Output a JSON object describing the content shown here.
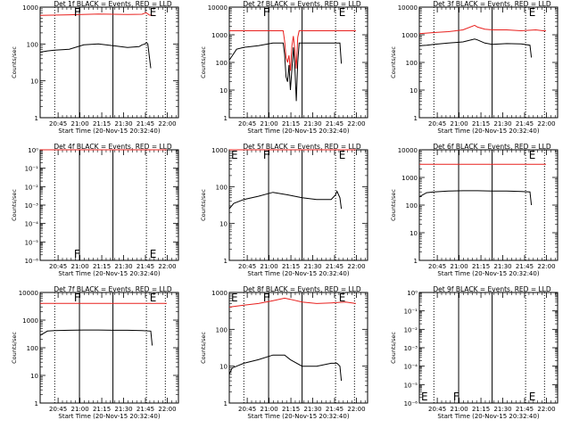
{
  "figure": {
    "x_title": "Start Time (20-Nov-15 20:32:40)",
    "y_title": "Counts/sec"
  },
  "colors": {
    "events": "#000000",
    "lld": "#e8201e"
  },
  "x_ticks": [
    "20:45",
    "21:00",
    "21:15",
    "21:30",
    "21:45",
    "22:00"
  ],
  "chart_data": [
    {
      "type": "line",
      "title": "Det 1f BLACK = Events, RED = LLD",
      "y_scale": "log",
      "ylim": [
        1,
        1000
      ],
      "y_ticks": [
        "1",
        "10",
        "100",
        "1000"
      ],
      "xlim_min": [
        0,
        95
      ],
      "vlines": {
        "solid": [
          27,
          50
        ],
        "dotted": [
          10,
          73,
          86
        ]
      },
      "markers": [
        {
          "text": "F",
          "x": 22,
          "pos": "top"
        },
        {
          "text": "E",
          "x": 74,
          "pos": "top"
        }
      ],
      "series": [
        {
          "name": "LLD",
          "x": [
            0,
            20,
            40,
            60,
            70,
            72,
            73,
            75,
            77,
            78
          ],
          "y": [
            600,
            620,
            650,
            630,
            640,
            690,
            700,
            610,
            600,
            600
          ]
        },
        {
          "name": "Events",
          "x": [
            0,
            5,
            10,
            20,
            30,
            40,
            50,
            60,
            68,
            70,
            72,
            73,
            74,
            75,
            76
          ],
          "y": [
            60,
            65,
            68,
            72,
            95,
            100,
            90,
            80,
            85,
            95,
            100,
            110,
            100,
            45,
            22
          ]
        }
      ]
    },
    {
      "type": "line",
      "title": "Det 2f BLACK = Events, RED = LLD",
      "y_scale": "log",
      "ylim": [
        1,
        10000
      ],
      "y_ticks": [
        "1",
        "10",
        "100",
        "1000",
        "10000"
      ],
      "xlim_min": [
        0,
        95
      ],
      "vlines": {
        "solid": [
          27,
          50
        ],
        "dotted": [
          10,
          73,
          86
        ]
      },
      "markers": [
        {
          "text": "F",
          "x": 22,
          "pos": "top"
        },
        {
          "text": "E",
          "x": 74,
          "pos": "top"
        }
      ],
      "series": [
        {
          "name": "LLD",
          "x": [
            0,
            30,
            37,
            38,
            39,
            40,
            41,
            42,
            43,
            44,
            45,
            46,
            47,
            48,
            60,
            80,
            87
          ],
          "y": [
            1400,
            1400,
            1400,
            600,
            150,
            100,
            180,
            50,
            400,
            900,
            300,
            60,
            800,
            1400,
            1400,
            1400,
            1400
          ]
        },
        {
          "name": "Events",
          "x": [
            0,
            5,
            10,
            20,
            30,
            37,
            38,
            39,
            40,
            41,
            42,
            43,
            44,
            45,
            46,
            47,
            48,
            50,
            60,
            70,
            76,
            77
          ],
          "y": [
            120,
            300,
            350,
            400,
            500,
            500,
            200,
            30,
            20,
            80,
            10,
            60,
            350,
            80,
            4,
            100,
            500,
            500,
            500,
            500,
            500,
            90
          ]
        }
      ]
    },
    {
      "type": "line",
      "title": "Det 3f BLACK = Events, RED = LLD",
      "y_scale": "log",
      "ylim": [
        1,
        10000
      ],
      "y_ticks": [
        "1",
        "10",
        "100",
        "1000",
        "10000"
      ],
      "xlim_min": [
        0,
        95
      ],
      "vlines": {
        "solid": [
          27,
          50
        ],
        "dotted": [
          10,
          73,
          86
        ]
      },
      "markers": [
        {
          "text": "E",
          "x": 74,
          "pos": "top"
        }
      ],
      "series": [
        {
          "name": "LLD",
          "x": [
            0,
            10,
            20,
            30,
            38,
            40,
            45,
            50,
            60,
            70,
            80,
            85,
            87
          ],
          "y": [
            1100,
            1200,
            1300,
            1500,
            2200,
            1900,
            1600,
            1500,
            1500,
            1400,
            1500,
            1400,
            1400
          ]
        },
        {
          "name": "Events",
          "x": [
            0,
            5,
            10,
            20,
            30,
            38,
            40,
            45,
            50,
            60,
            70,
            76,
            77
          ],
          "y": [
            400,
            420,
            450,
            500,
            550,
            700,
            650,
            500,
            450,
            480,
            470,
            420,
            150
          ]
        }
      ]
    },
    {
      "type": "line",
      "title": "Det 4f BLACK = Events, RED = LLD",
      "y_scale": "log",
      "ylim": [
        1e-06,
        1
      ],
      "y_ticks": [
        "10⁻⁶",
        "10⁻⁵",
        "10⁻⁴",
        "10⁻³",
        "10⁻²",
        "10⁻¹",
        "10⁰"
      ],
      "xlim_min": [
        0,
        95
      ],
      "vlines": {
        "solid": [
          27,
          50
        ],
        "dotted": [
          10,
          73,
          86
        ]
      },
      "markers": [
        {
          "text": "F",
          "x": 22,
          "pos": "bottom"
        },
        {
          "text": "E",
          "x": 74,
          "pos": "bottom"
        }
      ],
      "series": [
        {
          "name": "LLD",
          "x": [
            0,
            87
          ],
          "y": [
            1,
            1
          ]
        }
      ]
    },
    {
      "type": "line",
      "title": "Det 5f BLACK = Events, RED = LLD",
      "y_scale": "log",
      "ylim": [
        1,
        1000
      ],
      "y_ticks": [
        "1",
        "10",
        "100",
        "1000"
      ],
      "xlim_min": [
        0,
        95
      ],
      "vlines": {
        "solid": [
          27,
          50
        ],
        "dotted": [
          10,
          73,
          86
        ]
      },
      "markers": [
        {
          "text": "E",
          "x": 0,
          "pos": "top"
        },
        {
          "text": "F",
          "x": 22,
          "pos": "top"
        },
        {
          "text": "E",
          "x": 74,
          "pos": "top"
        }
      ],
      "series": [
        {
          "name": "LLD",
          "x": [
            0,
            87
          ],
          "y": [
            1000,
            1000
          ]
        },
        {
          "name": "Events",
          "x": [
            0,
            3,
            10,
            20,
            30,
            40,
            50,
            60,
            70,
            73,
            74,
            76,
            77
          ],
          "y": [
            25,
            35,
            45,
            55,
            70,
            60,
            50,
            45,
            45,
            60,
            75,
            50,
            25
          ]
        }
      ]
    },
    {
      "type": "line",
      "title": "Det 6f BLACK = Events, RED = LLD",
      "y_scale": "log",
      "ylim": [
        1,
        10000
      ],
      "y_ticks": [
        "1",
        "10",
        "100",
        "1000",
        "10000"
      ],
      "xlim_min": [
        0,
        95
      ],
      "vlines": {
        "solid": [
          27,
          50
        ],
        "dotted": [
          10,
          73,
          86
        ]
      },
      "markers": [
        {
          "text": "E",
          "x": 74,
          "pos": "top"
        }
      ],
      "series": [
        {
          "name": "LLD",
          "x": [
            0,
            87
          ],
          "y": [
            3000,
            3000
          ]
        },
        {
          "name": "Events",
          "x": [
            0,
            5,
            10,
            20,
            30,
            40,
            50,
            60,
            70,
            76,
            77
          ],
          "y": [
            200,
            280,
            300,
            320,
            330,
            330,
            320,
            320,
            310,
            300,
            100
          ]
        }
      ]
    },
    {
      "type": "line",
      "title": "Det 7f BLACK = Events, RED = LLD",
      "y_scale": "log",
      "ylim": [
        1,
        10000
      ],
      "y_ticks": [
        "1",
        "10",
        "100",
        "1000",
        "10000"
      ],
      "xlim_min": [
        0,
        95
      ],
      "vlines": {
        "solid": [
          27,
          50
        ],
        "dotted": [
          10,
          73,
          86
        ]
      },
      "markers": [
        {
          "text": "F",
          "x": 22,
          "pos": "top"
        },
        {
          "text": "E",
          "x": 74,
          "pos": "top"
        }
      ],
      "series": [
        {
          "name": "LLD",
          "x": [
            0,
            87
          ],
          "y": [
            4000,
            4000
          ]
        },
        {
          "name": "Events",
          "x": [
            0,
            5,
            10,
            20,
            30,
            40,
            50,
            60,
            70,
            76,
            77
          ],
          "y": [
            280,
            400,
            420,
            430,
            440,
            440,
            430,
            430,
            420,
            400,
            120
          ]
        }
      ]
    },
    {
      "type": "line",
      "title": "Det 8f BLACK = Events, RED = LLD",
      "y_scale": "log",
      "ylim": [
        1,
        1000
      ],
      "y_ticks": [
        "1",
        "10",
        "100",
        "1000"
      ],
      "xlim_min": [
        0,
        95
      ],
      "vlines": {
        "solid": [
          27,
          50
        ],
        "dotted": [
          10,
          73,
          86
        ]
      },
      "markers": [
        {
          "text": "E",
          "x": 0,
          "pos": "top"
        },
        {
          "text": "F",
          "x": 22,
          "pos": "top"
        },
        {
          "text": "E",
          "x": 74,
          "pos": "top"
        }
      ],
      "series": [
        {
          "name": "LLD",
          "x": [
            0,
            10,
            20,
            30,
            38,
            42,
            50,
            60,
            70,
            80,
            87
          ],
          "y": [
            400,
            450,
            500,
            600,
            700,
            650,
            550,
            500,
            520,
            550,
            500
          ]
        },
        {
          "name": "Events",
          "x": [
            0,
            2,
            5,
            10,
            20,
            30,
            38,
            42,
            50,
            60,
            70,
            74,
            76,
            77
          ],
          "y": [
            6,
            9,
            10,
            12,
            15,
            20,
            20,
            15,
            10,
            10,
            12,
            12,
            10,
            4
          ]
        }
      ]
    },
    {
      "type": "line",
      "title": "Det 9f BLACK = Events, RED = LLD",
      "y_scale": "log",
      "ylim": [
        1e-06,
        1
      ],
      "y_ticks": [
        "10⁻⁶",
        "10⁻⁵",
        "10⁻⁴",
        "10⁻³",
        "10⁻²",
        "10⁻¹",
        "10⁰"
      ],
      "xlim_min": [
        0,
        95
      ],
      "vlines": {
        "solid": [
          27,
          50
        ],
        "dotted": [
          10,
          73,
          86
        ]
      },
      "markers": [
        {
          "text": "E",
          "x": 0,
          "pos": "bottom"
        },
        {
          "text": "F",
          "x": 22,
          "pos": "bottom"
        },
        {
          "text": "E",
          "x": 74,
          "pos": "bottom"
        }
      ],
      "series": []
    }
  ]
}
